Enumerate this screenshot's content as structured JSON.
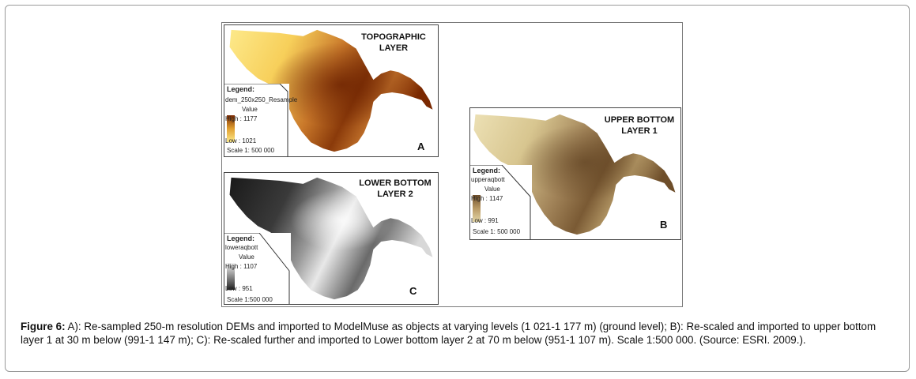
{
  "panels": {
    "a": {
      "title_line1": "TOPOGRAPHIC",
      "title_line2": "LAYER",
      "letter": "A",
      "legend": {
        "heading": "Legend:",
        "layer_name": "dem_250x250_Resample",
        "value_label": "Value",
        "high": "High : 1177",
        "low": "Low : 1021",
        "scale": "Scale 1: 500 000"
      },
      "colors": {
        "light": "#fde37a",
        "mid": "#e0a030",
        "dark": "#7a2800"
      }
    },
    "b": {
      "title_line1": "UPPER BOTTOM",
      "title_line2": "LAYER 1",
      "letter": "B",
      "legend": {
        "heading": "Legend:",
        "layer_name": "upperaqbott",
        "value_label": "Value",
        "high": "High : 1147",
        "low": "Low : 991",
        "scale": "Scale 1: 500 000"
      },
      "colors": {
        "light": "#e4d6a6",
        "mid": "#b99a66",
        "dark": "#6e4e2a"
      }
    },
    "c": {
      "title_line1": "LOWER BOTTOM",
      "title_line2": "LAYER 2",
      "letter": "C",
      "legend": {
        "heading": "Legend:",
        "layer_name": "loweraqbott",
        "value_label": "Value",
        "high": "High : 1107",
        "low": "Low : 951",
        "scale": "Scale 1:500 000"
      },
      "colors": {
        "light": "#f2f2f2",
        "mid": "#8c8c8c",
        "dark": "#222222"
      }
    }
  },
  "caption": {
    "label": "Figure 6:",
    "text": " A): Re-sampled 250-m resolution DEMs and imported to ModelMuse as objects at varying levels (1 021-1 177 m) (ground level); B): Re-scaled and imported to upper bottom layer 1 at 30 m below (991-1 147 m); C): Re-scaled further and imported to Lower bottom layer 2 at 70 m below (951-1 107 m). Scale 1:500 000. (Source: ESRI. 2009.)."
  }
}
